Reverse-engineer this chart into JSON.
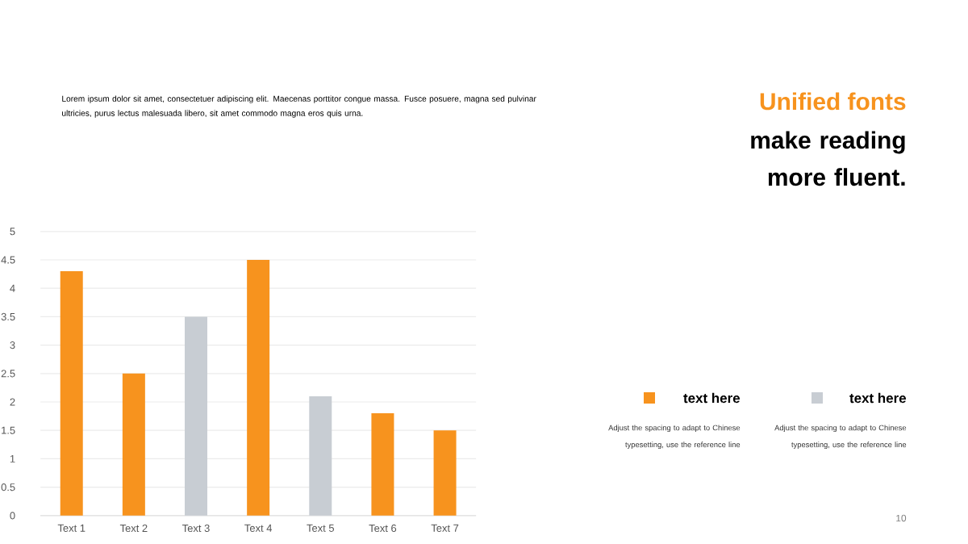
{
  "chart_data": {
    "type": "bar",
    "title": "Unified fonts",
    "subtitle": "make reading more fluent.",
    "categories": [
      "Text 1",
      "Text 2",
      "Text 3",
      "Text 4",
      "Text 5",
      "Text 6",
      "Text 7"
    ],
    "series": [
      {
        "name": "text here",
        "color": "#f7931e",
        "values": [
          4.3,
          2.5,
          null,
          4.5,
          null,
          1.8,
          1.5
        ]
      },
      {
        "name": "text here",
        "color": "#c8cdd3",
        "values": [
          null,
          null,
          3.5,
          null,
          2.1,
          null,
          null
        ]
      }
    ],
    "ylim": [
      0,
      5
    ],
    "yticks": [
      0,
      0.5,
      1,
      1.5,
      2,
      2.5,
      3,
      3.5,
      4,
      4.5,
      5
    ],
    "grid": "y",
    "legend": "right",
    "annotations": [
      "Lorem ipsum dolor sit amet, consectetuer adipiscing elit. Maecenas porttitor congue massa. Fusce posuere, magna sed pulvinar ultricies, purus lectus malesuada libero, sit amet commodo magna eros quis urna.",
      "Adjust the spacing to adapt to Chinese typesetting, use the reference line",
      "Adjust the spacing to adapt to Chinese typesetting, use the reference line",
      "10"
    ]
  }
}
